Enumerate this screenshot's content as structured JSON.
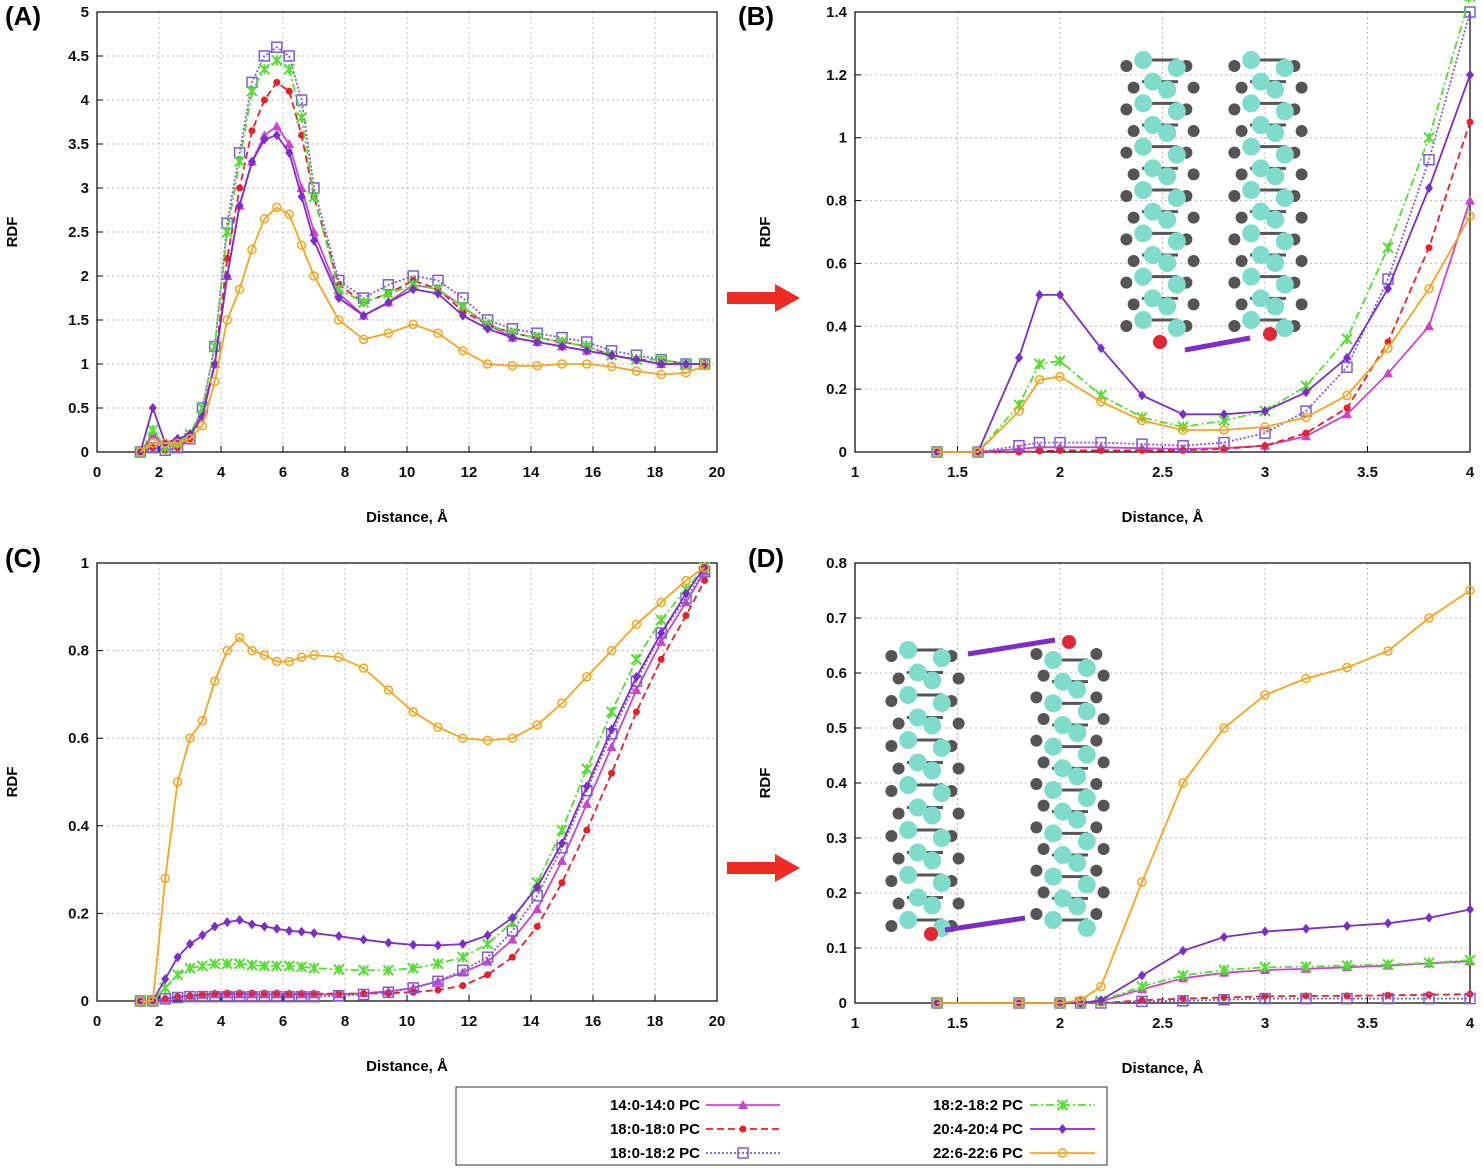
{
  "chart_data": [
    {
      "type": "line",
      "label": "(A)",
      "xlabel": "Distance, Å",
      "ylabel": "RDF",
      "x": [
        1.4,
        1.8,
        2.2,
        2.6,
        3.0,
        3.4,
        3.8,
        4.2,
        4.6,
        5.0,
        5.4,
        5.8,
        6.2,
        6.6,
        7.0,
        7.8,
        8.6,
        9.4,
        10.2,
        11.0,
        11.8,
        12.6,
        13.4,
        14.2,
        15.0,
        15.8,
        16.6,
        17.4,
        18.2,
        19.0,
        19.6
      ],
      "xlim": [
        0,
        20
      ],
      "ylim": [
        0,
        5
      ],
      "xticks": [
        0,
        2,
        4,
        6,
        8,
        10,
        12,
        14,
        16,
        18,
        20
      ],
      "yticks": [
        0,
        0.5,
        1,
        1.5,
        2,
        2.5,
        3,
        3.5,
        4,
        4.5,
        5
      ],
      "grid": true,
      "series": [
        {
          "name": "14:0-14:0 PC",
          "color": "#cc44cc",
          "marker": "triangle",
          "dash": "solid",
          "values": [
            0,
            0.2,
            0.05,
            0.1,
            0.2,
            0.45,
            1.0,
            2.0,
            2.8,
            3.3,
            3.6,
            3.7,
            3.5,
            3.0,
            2.5,
            1.8,
            1.55,
            1.7,
            1.9,
            1.85,
            1.65,
            1.45,
            1.3,
            1.25,
            1.2,
            1.15,
            1.1,
            1.05,
            1.0,
            1.0,
            1.0
          ]
        },
        {
          "name": "18:0-18:0 PC",
          "color": "#e8202a",
          "marker": "dot",
          "dash": "dashed",
          "values": [
            0,
            0.05,
            0.02,
            0.05,
            0.15,
            0.4,
            1.0,
            2.2,
            3.0,
            3.65,
            4.0,
            4.2,
            4.1,
            3.6,
            2.9,
            1.9,
            1.7,
            1.8,
            1.95,
            1.85,
            1.6,
            1.45,
            1.35,
            1.3,
            1.25,
            1.2,
            1.1,
            1.05,
            1.05,
            1.0,
            1.0
          ]
        },
        {
          "name": "18:0-18:2 PC",
          "color": "#7b5ce0",
          "marker": "square",
          "dash": "dotted",
          "values": [
            0,
            0.05,
            0.02,
            0.05,
            0.15,
            0.5,
            1.2,
            2.6,
            3.4,
            4.2,
            4.5,
            4.6,
            4.5,
            4.0,
            3.0,
            1.95,
            1.75,
            1.9,
            2.0,
            1.95,
            1.75,
            1.5,
            1.4,
            1.35,
            1.3,
            1.25,
            1.15,
            1.1,
            1.05,
            1.0,
            1.0
          ]
        },
        {
          "name": "18:2-18:2 PC",
          "color": "#55dd33",
          "marker": "cross",
          "dash": "dashdot",
          "values": [
            0,
            0.25,
            0.05,
            0.1,
            0.2,
            0.5,
            1.2,
            2.5,
            3.3,
            4.1,
            4.35,
            4.45,
            4.35,
            3.8,
            2.9,
            1.85,
            1.7,
            1.8,
            1.9,
            1.85,
            1.65,
            1.45,
            1.35,
            1.3,
            1.25,
            1.2,
            1.1,
            1.05,
            1.05,
            1.0,
            1.0
          ]
        },
        {
          "name": "20:4-20:4 PC",
          "color": "#7d2ec8",
          "marker": "diamond",
          "dash": "solid",
          "values": [
            0,
            0.5,
            0.1,
            0.15,
            0.2,
            0.4,
            1.0,
            2.0,
            2.8,
            3.3,
            3.55,
            3.6,
            3.4,
            2.9,
            2.4,
            1.75,
            1.55,
            1.7,
            1.85,
            1.8,
            1.55,
            1.4,
            1.3,
            1.25,
            1.2,
            1.15,
            1.1,
            1.05,
            1.0,
            1.0,
            1.0
          ]
        },
        {
          "name": "22:6-22:6 PC",
          "color": "#f5a623",
          "marker": "circle",
          "dash": "solid",
          "values": [
            0,
            0.1,
            0.1,
            0.1,
            0.15,
            0.3,
            0.8,
            1.5,
            1.85,
            2.3,
            2.65,
            2.78,
            2.7,
            2.35,
            2.0,
            1.5,
            1.28,
            1.35,
            1.45,
            1.35,
            1.15,
            1.0,
            0.98,
            0.98,
            1.0,
            1.0,
            0.97,
            0.92,
            0.88,
            0.9,
            0.98
          ]
        }
      ]
    },
    {
      "type": "line",
      "label": "(B)",
      "xlabel": "Distance, Å",
      "ylabel": "RDF",
      "x": [
        1.4,
        1.6,
        1.8,
        1.9,
        2.0,
        2.2,
        2.4,
        2.6,
        2.8,
        3.0,
        3.2,
        3.4,
        3.6,
        3.8,
        4.0
      ],
      "xlim": [
        1,
        4
      ],
      "ylim": [
        0,
        1.4
      ],
      "xticks": [
        1,
        1.5,
        2,
        2.5,
        3,
        3.5,
        4
      ],
      "yticks": [
        0,
        0.2,
        0.4,
        0.6,
        0.8,
        1,
        1.2,
        1.4
      ],
      "grid": true,
      "series": [
        {
          "color": "#cc44cc",
          "marker": "triangle",
          "dash": "solid",
          "values": [
            0,
            0,
            0.01,
            0.015,
            0.015,
            0.015,
            0.012,
            0.01,
            0.012,
            0.02,
            0.05,
            0.12,
            0.25,
            0.4,
            0.8
          ]
        },
        {
          "color": "#e8202a",
          "marker": "dot",
          "dash": "dashed",
          "values": [
            0,
            0,
            0,
            0.003,
            0.005,
            0.005,
            0.005,
            0.005,
            0.01,
            0.02,
            0.06,
            0.14,
            0.35,
            0.65,
            1.05
          ]
        },
        {
          "color": "#7b5ce0",
          "marker": "square",
          "dash": "dotted",
          "values": [
            0,
            0,
            0.02,
            0.03,
            0.03,
            0.03,
            0.025,
            0.02,
            0.03,
            0.06,
            0.13,
            0.27,
            0.55,
            0.93,
            1.4
          ]
        },
        {
          "color": "#55dd33",
          "marker": "cross",
          "dash": "dashdot",
          "values": [
            0,
            0,
            0.15,
            0.28,
            0.29,
            0.18,
            0.11,
            0.08,
            0.1,
            0.13,
            0.21,
            0.36,
            0.65,
            1.0,
            1.45
          ]
        },
        {
          "color": "#7d2ec8",
          "marker": "diamond",
          "dash": "solid",
          "values": [
            0,
            0,
            0.3,
            0.5,
            0.5,
            0.33,
            0.18,
            0.12,
            0.12,
            0.13,
            0.19,
            0.3,
            0.52,
            0.84,
            1.2
          ]
        },
        {
          "color": "#f5a623",
          "marker": "circle",
          "dash": "solid",
          "values": [
            0,
            0,
            0.13,
            0.23,
            0.24,
            0.16,
            0.1,
            0.07,
            0.07,
            0.08,
            0.11,
            0.18,
            0.33,
            0.52,
            0.75
          ]
        }
      ]
    },
    {
      "type": "line",
      "label": "(C)",
      "xlabel": "Distance, Å",
      "ylabel": "RDF",
      "x": [
        1.4,
        1.8,
        2.2,
        2.6,
        3.0,
        3.4,
        3.8,
        4.2,
        4.6,
        5.0,
        5.4,
        5.8,
        6.2,
        6.6,
        7.0,
        7.8,
        8.6,
        9.4,
        10.2,
        11.0,
        11.8,
        12.6,
        13.4,
        14.2,
        15.0,
        15.8,
        16.6,
        17.4,
        18.2,
        19.0,
        19.6
      ],
      "xlim": [
        0,
        20
      ],
      "ylim": [
        0,
        1
      ],
      "xticks": [
        0,
        2,
        4,
        6,
        8,
        10,
        12,
        14,
        16,
        18,
        20
      ],
      "yticks": [
        0,
        0.2,
        0.4,
        0.6,
        0.8,
        1
      ],
      "grid": true,
      "series": [
        {
          "color": "#cc44cc",
          "marker": "triangle",
          "dash": "solid",
          "values": [
            0,
            0,
            0.005,
            0.01,
            0.012,
            0.014,
            0.015,
            0.015,
            0.015,
            0.015,
            0.015,
            0.015,
            0.015,
            0.015,
            0.015,
            0.015,
            0.018,
            0.022,
            0.03,
            0.045,
            0.065,
            0.09,
            0.14,
            0.21,
            0.32,
            0.45,
            0.58,
            0.71,
            0.82,
            0.91,
            0.98
          ]
        },
        {
          "color": "#e8202a",
          "marker": "dot",
          "dash": "dashed",
          "values": [
            0,
            0,
            0.005,
            0.01,
            0.012,
            0.015,
            0.017,
            0.018,
            0.018,
            0.018,
            0.018,
            0.018,
            0.017,
            0.017,
            0.017,
            0.017,
            0.017,
            0.018,
            0.02,
            0.025,
            0.035,
            0.06,
            0.1,
            0.17,
            0.27,
            0.39,
            0.52,
            0.66,
            0.78,
            0.88,
            0.96
          ]
        },
        {
          "color": "#7b5ce0",
          "marker": "square",
          "dash": "dotted",
          "values": [
            0,
            0,
            0.005,
            0.008,
            0.01,
            0.01,
            0.01,
            0.01,
            0.01,
            0.01,
            0.01,
            0.01,
            0.01,
            0.01,
            0.01,
            0.012,
            0.015,
            0.02,
            0.03,
            0.045,
            0.07,
            0.1,
            0.16,
            0.24,
            0.35,
            0.48,
            0.61,
            0.73,
            0.84,
            0.92,
            0.98
          ]
        },
        {
          "color": "#55dd33",
          "marker": "cross",
          "dash": "dashdot",
          "values": [
            0,
            0,
            0.03,
            0.06,
            0.075,
            0.08,
            0.085,
            0.085,
            0.085,
            0.082,
            0.08,
            0.08,
            0.08,
            0.078,
            0.075,
            0.072,
            0.07,
            0.07,
            0.075,
            0.085,
            0.1,
            0.13,
            0.18,
            0.27,
            0.39,
            0.53,
            0.66,
            0.78,
            0.87,
            0.94,
            0.99
          ]
        },
        {
          "color": "#7d2ec8",
          "marker": "diamond",
          "dash": "solid",
          "values": [
            0,
            0,
            0.05,
            0.1,
            0.13,
            0.15,
            0.17,
            0.18,
            0.185,
            0.175,
            0.17,
            0.165,
            0.16,
            0.158,
            0.155,
            0.148,
            0.14,
            0.133,
            0.128,
            0.127,
            0.13,
            0.15,
            0.19,
            0.26,
            0.36,
            0.49,
            0.62,
            0.74,
            0.84,
            0.93,
            0.99
          ]
        },
        {
          "color": "#f5a623",
          "marker": "circle",
          "dash": "solid",
          "values": [
            0,
            0,
            0.28,
            0.5,
            0.6,
            0.64,
            0.73,
            0.8,
            0.83,
            0.8,
            0.79,
            0.775,
            0.775,
            0.785,
            0.79,
            0.785,
            0.76,
            0.71,
            0.66,
            0.625,
            0.6,
            0.595,
            0.6,
            0.63,
            0.68,
            0.74,
            0.8,
            0.86,
            0.91,
            0.96,
            0.99
          ]
        }
      ]
    },
    {
      "type": "line",
      "label": "(D)",
      "xlabel": "Distance, Å",
      "ylabel": "RDF",
      "x": [
        1.4,
        1.8,
        2.0,
        2.1,
        2.2,
        2.4,
        2.6,
        2.8,
        3.0,
        3.2,
        3.4,
        3.6,
        3.8,
        4.0
      ],
      "xlim": [
        1,
        4
      ],
      "ylim": [
        0,
        0.8
      ],
      "xticks": [
        1,
        1.5,
        2,
        2.5,
        3,
        3.5,
        4
      ],
      "yticks": [
        0,
        0.1,
        0.2,
        0.3,
        0.4,
        0.5,
        0.6,
        0.7,
        0.8
      ],
      "grid": true,
      "series": [
        {
          "color": "#cc44cc",
          "marker": "triangle",
          "dash": "solid",
          "values": [
            0,
            0,
            0,
            0,
            0.003,
            0.025,
            0.045,
            0.055,
            0.06,
            0.062,
            0.065,
            0.068,
            0.072,
            0.076
          ]
        },
        {
          "color": "#e8202a",
          "marker": "dot",
          "dash": "dashed",
          "values": [
            0,
            0,
            0,
            0,
            0,
            0.005,
            0.008,
            0.01,
            0.012,
            0.013,
            0.013,
            0.014,
            0.015,
            0.016
          ]
        },
        {
          "color": "#7b5ce0",
          "marker": "square",
          "dash": "dotted",
          "values": [
            0,
            0,
            0,
            0,
            0,
            0.003,
            0.004,
            0.006,
            0.008,
            0.008,
            0.008,
            0.008,
            0.008,
            0.008
          ]
        },
        {
          "color": "#55dd33",
          "marker": "cross",
          "dash": "dashdot",
          "values": [
            0,
            0,
            0,
            0,
            0.004,
            0.03,
            0.05,
            0.06,
            0.065,
            0.066,
            0.068,
            0.07,
            0.073,
            0.078
          ]
        },
        {
          "color": "#7d2ec8",
          "marker": "diamond",
          "dash": "solid",
          "values": [
            0,
            0,
            0,
            0,
            0.005,
            0.05,
            0.095,
            0.12,
            0.13,
            0.135,
            0.14,
            0.145,
            0.155,
            0.17
          ]
        },
        {
          "color": "#f5a623",
          "marker": "circle",
          "dash": "solid",
          "values": [
            0,
            0,
            0,
            0.005,
            0.03,
            0.22,
            0.4,
            0.5,
            0.56,
            0.59,
            0.61,
            0.64,
            0.7,
            0.75
          ]
        }
      ]
    }
  ]
}
